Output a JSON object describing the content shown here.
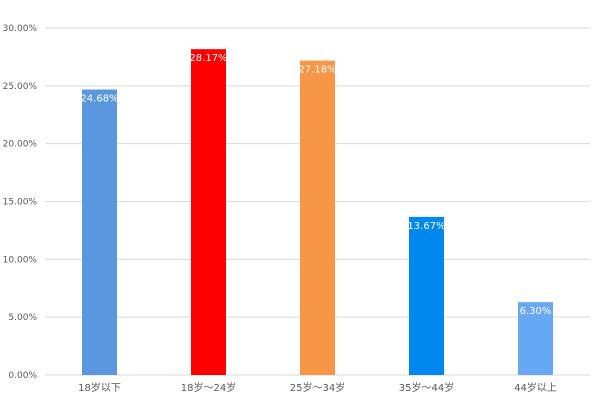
{
  "chart_data": {
    "type": "bar",
    "categories": [
      "18岁以下",
      "18岁～24岁",
      "25岁～34岁",
      "35岁～44岁",
      "44岁以上"
    ],
    "values": [
      24.68,
      28.17,
      27.18,
      13.67,
      6.3
    ],
    "data_labels": [
      "24.68%",
      "28.17%",
      "27.18%",
      "13.67%",
      "6.30%"
    ],
    "bar_colors": [
      "#5B97DE",
      "#FF0000",
      "#F79646",
      "#0088EE",
      "#66A8F4"
    ],
    "ylim": [
      0,
      30
    ],
    "y_ticks": [
      0,
      5,
      10,
      15,
      20,
      25,
      30
    ],
    "y_tick_labels": [
      "0.00%",
      "5.00%",
      "10.00%",
      "15.00%",
      "20.00%",
      "25.00%",
      "30.00%"
    ],
    "title": "",
    "xlabel": "",
    "ylabel": "",
    "grid": true,
    "legend": false,
    "gridline_color": "#D9D9D9",
    "label_color": "#595959"
  }
}
